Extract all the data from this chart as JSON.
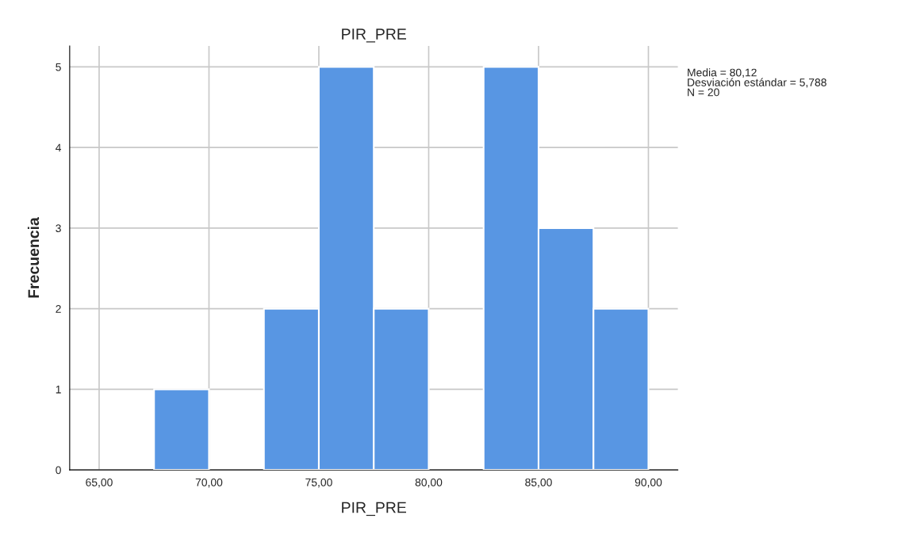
{
  "chart_data": {
    "type": "histogram",
    "title": "PIR_PRE",
    "xlabel": "PIR_PRE",
    "ylabel": "Frecuencia",
    "bins": [
      65,
      67.5,
      70,
      72.5,
      75,
      77.5,
      80,
      82.5,
      85,
      87.5,
      90
    ],
    "values": [
      0,
      1,
      0,
      2,
      5,
      2,
      0,
      5,
      3,
      2
    ],
    "color": "#5896e3",
    "xlim": [
      63.66,
      91.34
    ],
    "xticks": [
      {
        "value": 65,
        "label": "65,00"
      },
      {
        "value": 70,
        "label": "70,00"
      },
      {
        "value": 75,
        "label": "75,00"
      },
      {
        "value": 80,
        "label": "80,00"
      },
      {
        "value": 85,
        "label": "85,00"
      },
      {
        "value": 90,
        "label": "90,00"
      }
    ],
    "ylim": [
      0,
      5.26
    ],
    "yticks": [
      0,
      1,
      2,
      3,
      4,
      5
    ],
    "grid": true,
    "annotations": [
      "Media = 80,12\nDesviación estándar = 5,788\nN = 20"
    ]
  }
}
